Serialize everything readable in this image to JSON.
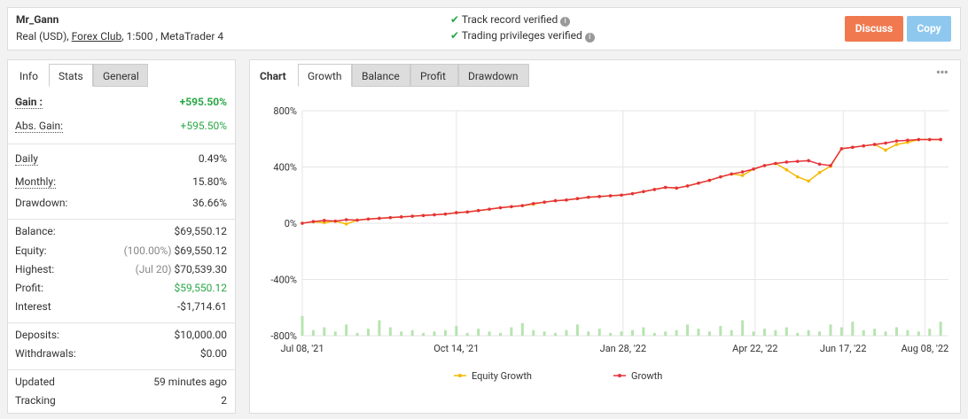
{
  "header": {
    "name": "Mr_Gann",
    "account_pre": "Real (USD),",
    "broker": "Forex Club",
    "account_post": ", 1:500 , MetaTrader 4",
    "verified_1": "Track record verified",
    "verified_2": "Trading privileges verified",
    "discuss": "Discuss",
    "copy": "Copy"
  },
  "left_tabs": [
    "Info",
    "Stats",
    "General"
  ],
  "stats": [
    [
      {
        "label": "Gain :",
        "value": "+595.50%",
        "color": "#28a745",
        "underline": true,
        "bold": true
      },
      {
        "label": "Abs. Gain:",
        "value": "+595.50%",
        "color": "#28a745",
        "underline": true
      }
    ],
    [
      {
        "label": "Daily",
        "value": "0.49%",
        "underline": true
      },
      {
        "label": "Monthly:",
        "value": "15.80%",
        "underline": true
      },
      {
        "label": "Drawdown:",
        "value": "36.66%"
      }
    ],
    [
      {
        "label": "Balance:",
        "value": "$69,550.12"
      },
      {
        "label": "Equity:",
        "note": "(100.00%)",
        "value": "$69,550.12"
      },
      {
        "label": "Highest:",
        "note": "(Jul 20)",
        "value": "$70,539.30"
      },
      {
        "label": "Profit:",
        "value": "$59,550.12",
        "color": "#28a745"
      },
      {
        "label": "Interest",
        "value": "-$1,714.61"
      }
    ],
    [
      {
        "label": "Deposits:",
        "value": "$10,000.00"
      },
      {
        "label": "Withdrawals:",
        "value": "$0.00"
      }
    ],
    [
      {
        "label": "Updated",
        "value": "59 minutes ago"
      },
      {
        "label": "Tracking",
        "value": "2"
      }
    ]
  ],
  "chart_tabs": [
    "Chart",
    "Growth",
    "Balance",
    "Profit",
    "Drawdown"
  ],
  "chart_data": {
    "type": "line",
    "x": [
      "2021-07-08",
      "2021-07-15",
      "2021-07-22",
      "2021-07-29",
      "2021-08-05",
      "2021-08-12",
      "2021-08-19",
      "2021-08-26",
      "2021-09-02",
      "2021-09-09",
      "2021-09-16",
      "2021-09-23",
      "2021-09-30",
      "2021-10-07",
      "2021-10-14",
      "2021-10-21",
      "2021-10-28",
      "2021-11-04",
      "2021-11-11",
      "2021-11-18",
      "2021-11-25",
      "2021-12-02",
      "2021-12-09",
      "2021-12-16",
      "2021-12-23",
      "2021-12-30",
      "2022-01-06",
      "2022-01-13",
      "2022-01-20",
      "2022-01-27",
      "2022-02-03",
      "2022-02-10",
      "2022-02-17",
      "2022-02-24",
      "2022-03-03",
      "2022-03-10",
      "2022-03-17",
      "2022-03-24",
      "2022-03-31",
      "2022-04-07",
      "2022-04-14",
      "2022-04-21",
      "2022-04-28",
      "2022-05-05",
      "2022-05-12",
      "2022-05-19",
      "2022-05-26",
      "2022-06-02",
      "2022-06-09",
      "2022-06-16",
      "2022-06-23",
      "2022-06-30",
      "2022-07-07",
      "2022-07-14",
      "2022-07-21",
      "2022-07-28",
      "2022-08-04",
      "2022-08-11",
      "2022-08-18"
    ],
    "series": [
      {
        "name": "Equity Growth",
        "color": "#f5b800",
        "values": [
          0,
          10,
          5,
          15,
          -5,
          22,
          30,
          35,
          40,
          45,
          50,
          55,
          60,
          65,
          75,
          80,
          90,
          100,
          110,
          118,
          125,
          135,
          150,
          160,
          165,
          175,
          185,
          190,
          195,
          200,
          210,
          225,
          240,
          255,
          250,
          265,
          285,
          305,
          330,
          350,
          340,
          385,
          410,
          425,
          380,
          330,
          300,
          360,
          405,
          530,
          540,
          550,
          560,
          520,
          560,
          575,
          595,
          595,
          595.5
        ]
      },
      {
        "name": "Growth",
        "color": "#e5323b",
        "values": [
          0,
          12,
          20,
          15,
          25,
          22,
          30,
          35,
          40,
          45,
          50,
          55,
          60,
          65,
          75,
          80,
          90,
          100,
          110,
          118,
          125,
          140,
          150,
          160,
          165,
          175,
          185,
          190,
          195,
          200,
          210,
          225,
          240,
          255,
          250,
          265,
          285,
          305,
          330,
          350,
          365,
          385,
          410,
          425,
          435,
          440,
          445,
          420,
          410,
          530,
          540,
          550,
          560,
          570,
          585,
          590,
          595,
          595,
          595.5
        ]
      }
    ],
    "bars": [
      -660,
      -760,
      -740,
      -770,
      -720,
      -780,
      -750,
      -690,
      -740,
      -770,
      -760,
      -780,
      -770,
      -760,
      -730,
      -780,
      -750,
      -770,
      -780,
      -740,
      -710,
      -760,
      -770,
      -780,
      -760,
      -720,
      -770,
      -750,
      -780,
      -770,
      -760,
      -740,
      -780,
      -770,
      -760,
      -720,
      -750,
      -770,
      -730,
      -760,
      -690,
      -770,
      -750,
      -760,
      -740,
      -780,
      -760,
      -770,
      -720,
      -740,
      -700,
      -760,
      -750,
      -770,
      -740,
      -760,
      -770,
      -750,
      -700
    ],
    "bar_color": "#b7e4b0",
    "xlim": [
      "2021-07-08",
      "2022-08-23"
    ],
    "xticks": [
      {
        "value": "2021-07-08",
        "label": "Jul 08, '21"
      },
      {
        "value": "2021-10-14",
        "label": "Oct 14, '21"
      },
      {
        "value": "2022-01-28",
        "label": "Jan 28, '22"
      },
      {
        "value": "2022-04-22",
        "label": "Apr 22, '22"
      },
      {
        "value": "2022-06-17",
        "label": "Jun 17, '22"
      },
      {
        "value": "2022-08-08",
        "label": "Aug 08, '22"
      }
    ],
    "ylim": [
      -800,
      800
    ],
    "yticks": [
      {
        "value": 800,
        "label": "800%"
      },
      {
        "value": 400,
        "label": "400%"
      },
      {
        "value": 0,
        "label": "0%"
      },
      {
        "value": -400,
        "label": "-400%"
      },
      {
        "value": -800,
        "label": "-800%"
      }
    ],
    "grid": true
  }
}
